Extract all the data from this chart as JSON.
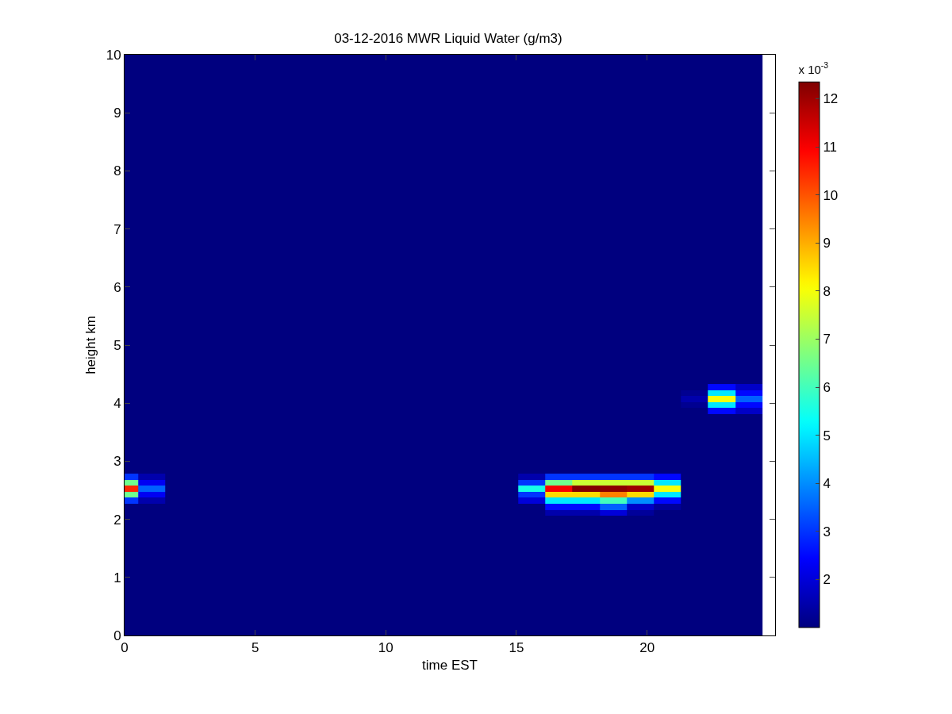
{
  "chart_data": {
    "type": "heatmap",
    "title": "03-12-2016 MWR Liquid Water (g/m3)",
    "xlabel": "time EST",
    "ylabel": "height km",
    "clabel": "x 10$^{-3}$",
    "x": [
      0,
      1.02,
      2.06,
      3.1,
      4.14,
      5.18,
      6.22,
      7.26,
      8.3,
      9.34,
      10.38,
      11.42,
      12.46,
      13.5,
      14.54,
      15.58,
      16.62,
      17.66,
      18.7,
      19.74,
      20.78,
      21.82,
      22.86,
      23.9
    ],
    "cells": [
      [
        1,
        1,
        1,
        1,
        1,
        1,
        1,
        1,
        1,
        1,
        1,
        1,
        1,
        1,
        1,
        1,
        1,
        1,
        1,
        1,
        1,
        1,
        1,
        1
      ],
      [
        1,
        1,
        1,
        1,
        1,
        1,
        1,
        1,
        1,
        1,
        1,
        1,
        1,
        1,
        1,
        1,
        1,
        1,
        1,
        1,
        1,
        1,
        1,
        1
      ],
      [
        1,
        1,
        1,
        1,
        1,
        1,
        1,
        1,
        1,
        1,
        1,
        1,
        1,
        1,
        1,
        1,
        1,
        1,
        1,
        1,
        1,
        1,
        1,
        1
      ],
      [
        1,
        1,
        1,
        1,
        1,
        1,
        1,
        1,
        1,
        1,
        1,
        1,
        1,
        1,
        1,
        1,
        1,
        1,
        1,
        1,
        1,
        1,
        1,
        1
      ],
      [
        1,
        1,
        1,
        1,
        1,
        1,
        1,
        1,
        1,
        1,
        1,
        1,
        1,
        1,
        1,
        1,
        1,
        1,
        1,
        1,
        1,
        1,
        1,
        1
      ],
      [
        1,
        1,
        1,
        1,
        1,
        1,
        1,
        1,
        1,
        1,
        1,
        1,
        1,
        1,
        1,
        1,
        1,
        1,
        1,
        1,
        1,
        1,
        1,
        1
      ],
      [
        1,
        1,
        1,
        1,
        1,
        1,
        1,
        1,
        1,
        1,
        1,
        1,
        1,
        1,
        1,
        1,
        1,
        1,
        1,
        1,
        1,
        1,
        1,
        1
      ],
      [
        1,
        1,
        1,
        1,
        1,
        1,
        1,
        1,
        1,
        1,
        1,
        1,
        1,
        1,
        1,
        1,
        1,
        1,
        1,
        1,
        1,
        1,
        1,
        1
      ],
      [
        1,
        1,
        1,
        1,
        1,
        1,
        1,
        1,
        1,
        1,
        1,
        1,
        1,
        1,
        1,
        1,
        1,
        1,
        1,
        1,
        1,
        1,
        1,
        1
      ],
      [
        1,
        1,
        1,
        1,
        1,
        1,
        1,
        1,
        1,
        1,
        1,
        1,
        1,
        1,
        1,
        1,
        1,
        1,
        1,
        1,
        1,
        1,
        1,
        1
      ],
      [
        1,
        1,
        1,
        1,
        1,
        1,
        1,
        1,
        1,
        1,
        1,
        1,
        1,
        1,
        1,
        1,
        1,
        1,
        1,
        1,
        1,
        1,
        1,
        1
      ],
      [
        1,
        1,
        1,
        1,
        1,
        1,
        1,
        1,
        1,
        1,
        1,
        1,
        1,
        1,
        1,
        1,
        1,
        1,
        1,
        1,
        1,
        1,
        1,
        1
      ],
      [
        1,
        1,
        1,
        1,
        1,
        1,
        1,
        1,
        1,
        1,
        1,
        1,
        1,
        1,
        1,
        1,
        1,
        1,
        1,
        1,
        1,
        1,
        1,
        1
      ],
      [
        1,
        1,
        1,
        1,
        1,
        1,
        1,
        1,
        1,
        1,
        1,
        1,
        1,
        1,
        1,
        1,
        1,
        1,
        1,
        1,
        1,
        1,
        1,
        1
      ],
      [
        1,
        1,
        1,
        1,
        1,
        1,
        1,
        1,
        1,
        1,
        1,
        1,
        1,
        1,
        1,
        1,
        1,
        1,
        1,
        1,
        1,
        1,
        1,
        1
      ],
      [
        1,
        1,
        1,
        1,
        1,
        1,
        1,
        1,
        1,
        1,
        1,
        1,
        1,
        1,
        1,
        1,
        1,
        1,
        1,
        1,
        1,
        1,
        1,
        1
      ],
      [
        1,
        1,
        1,
        1,
        1,
        1,
        1,
        1,
        1,
        1,
        1,
        1,
        1,
        1,
        1,
        1,
        1,
        1,
        1,
        1,
        1,
        1,
        1,
        1
      ],
      [
        1,
        1,
        1,
        1,
        1,
        1,
        1,
        1,
        1,
        1,
        1,
        1,
        1,
        1,
        1,
        1,
        1,
        1,
        1,
        1,
        1,
        1,
        1,
        1
      ],
      [
        1,
        1,
        1,
        1,
        1,
        1,
        1,
        1,
        1,
        1,
        1,
        1,
        1,
        1,
        1,
        1,
        1,
        1,
        1,
        1,
        1,
        1,
        1,
        1
      ],
      [
        1,
        1,
        1,
        1,
        1,
        1,
        1,
        1,
        1,
        1,
        1,
        1,
        1,
        1,
        1,
        1,
        1,
        1,
        1,
        1,
        1,
        1,
        1,
        1
      ],
      [
        1,
        1,
        1,
        1,
        1,
        1,
        1,
        1,
        1,
        1,
        1,
        1,
        1,
        1,
        1,
        1,
        1,
        1,
        1,
        1,
        1,
        1,
        1,
        1
      ],
      [
        1,
        1,
        1,
        1,
        1,
        1,
        1,
        1,
        1,
        1,
        1,
        1,
        1,
        1,
        1,
        1,
        1,
        1,
        1,
        1,
        1,
        1,
        1,
        1
      ],
      [
        1,
        1,
        1,
        1,
        1,
        1,
        1,
        1,
        1,
        1,
        1,
        1,
        1,
        1,
        1,
        1,
        1,
        1,
        1,
        1,
        1,
        1,
        1,
        1
      ],
      [
        1,
        1,
        1,
        1,
        1,
        1,
        1,
        1,
        1,
        1,
        1,
        1,
        1,
        1,
        1,
        1,
        1,
        1,
        1,
        1,
        1,
        1,
        1,
        1
      ],
      [
        1,
        1,
        1,
        1,
        1,
        1,
        1,
        1,
        1,
        1,
        1,
        1,
        1,
        1,
        1,
        1,
        1,
        1,
        1,
        1,
        1,
        1,
        1,
        1
      ],
      [
        1,
        1,
        1,
        1,
        1,
        1,
        1,
        1,
        1,
        1,
        1,
        1,
        1,
        1,
        1,
        1,
        1,
        1,
        1,
        1,
        1,
        1,
        1,
        1
      ],
      [
        1,
        1,
        1,
        1,
        1,
        1,
        1,
        1,
        1,
        1,
        1,
        1,
        1,
        1,
        1,
        1,
        1,
        1,
        1,
        1,
        1,
        1,
        1,
        1
      ],
      [
        1,
        1,
        1,
        1,
        1,
        1,
        1,
        1,
        1,
        1,
        1,
        1,
        1,
        1,
        1,
        1,
        1,
        1,
        1,
        1,
        1,
        1,
        1,
        1
      ],
      [
        1,
        1,
        1,
        1,
        1,
        1,
        1,
        1,
        1,
        1,
        1,
        1,
        1,
        1,
        1,
        1,
        1,
        1,
        1,
        1,
        1,
        1,
        1,
        1
      ],
      [
        1,
        1,
        1,
        1,
        1,
        1,
        1,
        1,
        1,
        1,
        1,
        1,
        1,
        1,
        1,
        1,
        1,
        1,
        1,
        1,
        1,
        1,
        1,
        1
      ],
      [
        1,
        1,
        1,
        1,
        1,
        1,
        1,
        1,
        1,
        1,
        1,
        1,
        1,
        1,
        1,
        1,
        1,
        1,
        1,
        1,
        1,
        1,
        1,
        1
      ],
      [
        1,
        1,
        1,
        1,
        1,
        1,
        1,
        1,
        1,
        1,
        1,
        1,
        1,
        1,
        1,
        1,
        1,
        1,
        1,
        1,
        1,
        1,
        1,
        1
      ],
      [
        1,
        1,
        1,
        1,
        1,
        1,
        1,
        1,
        1,
        1,
        1,
        1,
        1,
        1,
        1,
        1,
        1,
        1,
        1,
        1,
        1,
        1,
        1,
        1
      ],
      [
        1,
        1,
        1,
        1,
        1,
        1,
        1,
        1,
        1,
        1,
        1,
        1,
        1,
        1,
        1,
        1,
        1,
        1,
        1,
        1,
        1,
        1,
        1,
        1
      ],
      [
        1,
        1,
        1,
        1,
        1,
        1,
        1,
        1,
        1,
        1,
        1,
        1,
        1,
        1,
        1,
        1,
        1,
        1,
        1,
        1,
        1,
        1,
        1,
        1
      ],
      [
        1,
        1,
        1,
        1,
        1,
        1,
        1,
        1,
        1,
        1,
        1,
        1,
        1,
        1,
        1,
        1,
        1,
        1,
        1,
        1,
        1,
        1,
        1,
        1
      ],
      [
        1,
        1,
        1,
        1,
        1,
        1,
        1,
        1,
        1,
        1,
        1,
        1,
        1,
        1,
        1,
        1,
        1,
        1,
        1,
        1,
        1,
        1,
        1,
        1
      ],
      [
        1,
        1,
        1,
        1,
        1,
        1,
        1,
        1,
        1,
        1,
        1,
        1,
        1,
        1,
        1,
        1,
        1,
        1,
        1,
        1,
        1,
        1,
        1,
        1
      ],
      [
        1,
        1,
        1,
        1,
        1,
        1,
        1,
        1,
        1,
        1,
        1,
        1,
        1,
        1,
        1,
        1,
        1,
        1,
        1,
        1,
        1,
        1,
        1,
        1
      ],
      [
        1,
        1,
        1,
        1,
        1,
        1,
        1,
        1,
        1,
        1,
        1,
        1,
        1,
        1,
        1,
        1,
        1,
        1,
        1,
        1,
        1,
        1,
        1,
        1
      ],
      [
        1,
        1,
        1,
        1,
        1,
        1,
        1,
        1,
        1,
        1,
        1,
        1,
        1,
        1,
        1,
        1,
        1,
        1,
        1,
        1,
        1,
        1,
        1,
        1
      ],
      [
        1,
        1,
        1,
        1,
        1,
        1,
        1,
        1,
        1,
        1,
        1,
        1,
        1,
        1,
        1,
        1,
        1,
        1,
        1,
        1,
        1,
        1,
        1,
        1
      ],
      [
        1,
        1,
        1,
        1,
        1,
        1,
        1,
        1,
        1,
        1,
        1,
        1,
        1,
        1,
        1,
        1,
        1,
        1,
        1,
        1,
        1,
        1,
        1,
        1
      ],
      [
        1,
        1,
        1,
        1,
        1,
        1,
        1,
        1,
        1,
        1,
        1,
        1,
        1,
        1,
        1,
        1,
        1,
        1,
        1,
        1,
        1,
        1,
        1,
        1
      ],
      [
        1,
        1,
        1,
        1,
        1,
        1,
        1,
        1,
        1,
        1,
        1,
        1,
        1,
        1,
        1,
        1,
        1,
        1,
        1,
        1,
        1,
        1,
        1,
        1
      ],
      [
        1,
        1,
        1,
        1,
        1,
        1,
        1,
        1,
        1,
        1,
        1,
        1,
        1,
        1,
        1,
        1,
        1,
        1,
        1,
        1,
        1,
        1,
        1,
        1
      ],
      [
        1,
        1,
        1,
        1,
        1,
        1,
        1,
        1,
        1,
        1,
        1,
        1,
        1,
        1,
        1,
        1,
        1,
        1,
        1,
        1,
        1,
        1,
        1,
        1
      ],
      [
        1,
        1,
        1,
        1,
        1,
        1,
        1,
        1,
        1,
        1,
        1,
        1,
        1,
        1,
        1,
        1,
        1,
        1,
        1,
        1,
        1,
        1,
        1,
        1
      ],
      [
        1,
        1,
        1,
        1,
        1,
        1,
        1,
        1,
        1,
        1,
        1,
        1,
        1,
        1,
        1,
        1,
        1,
        1,
        1,
        1,
        1,
        1,
        1,
        1
      ],
      [
        1,
        1,
        1,
        1,
        1,
        1,
        1,
        1,
        1,
        1,
        1,
        1,
        1,
        1,
        1,
        1,
        1,
        1,
        1,
        1,
        1,
        1,
        1,
        1
      ],
      [
        1,
        1,
        1,
        1,
        1,
        1,
        1,
        1,
        1,
        1,
        1,
        1,
        1,
        1,
        1,
        1,
        1,
        1,
        1,
        1,
        1,
        1,
        1,
        1
      ],
      [
        1,
        1,
        1,
        1,
        1,
        1,
        1,
        1,
        1,
        1,
        1,
        1,
        1,
        1,
        1,
        1,
        1,
        1,
        1,
        1,
        1,
        1,
        1,
        1
      ],
      [
        1,
        1,
        1,
        1,
        1,
        1,
        1,
        1,
        1,
        1,
        1,
        1,
        1,
        1,
        1,
        1,
        1,
        1,
        1,
        1,
        1,
        1,
        1,
        1
      ],
      [
        1,
        1,
        1,
        1,
        1,
        1,
        1,
        1,
        1,
        1,
        1,
        1,
        1,
        1,
        1,
        1,
        1,
        1,
        1,
        1,
        1,
        1,
        1,
        1
      ],
      [
        1,
        1,
        1,
        1,
        1,
        1,
        1,
        1,
        1,
        1,
        1,
        1,
        1,
        1,
        1,
        1,
        1,
        1,
        1,
        1,
        1,
        1,
        1,
        1
      ],
      [
        1,
        1,
        1,
        1,
        1,
        1,
        1,
        1,
        1,
        1,
        1,
        1,
        1,
        1,
        1,
        1,
        1,
        1,
        1,
        1,
        1,
        1,
        2.5,
        1.8
      ],
      [
        1,
        1,
        1,
        1,
        1,
        1,
        1,
        1,
        1,
        1,
        1,
        1,
        1,
        1,
        1,
        1,
        1,
        1,
        1,
        1,
        1,
        1.2,
        5,
        2.5
      ],
      [
        1,
        1,
        1,
        1,
        1,
        1,
        1,
        1,
        1,
        1,
        1,
        1,
        1,
        1,
        1,
        1,
        1,
        1,
        1,
        1,
        1,
        1.5,
        8,
        3.5
      ],
      [
        1,
        1,
        1,
        1,
        1,
        1,
        1,
        1,
        1,
        1,
        1,
        1,
        1,
        1,
        1,
        1,
        1,
        1,
        1,
        1,
        1,
        1.2,
        5,
        2.5
      ],
      [
        1,
        1,
        1,
        1,
        1,
        1,
        1,
        1,
        1,
        1,
        1,
        1,
        1,
        1,
        1,
        1,
        1,
        1,
        1,
        1,
        1,
        1,
        2.5,
        1.8
      ],
      [
        1,
        1,
        1,
        1,
        1,
        1,
        1,
        1,
        1,
        1,
        1,
        1,
        1,
        1,
        1,
        1,
        1,
        1,
        1,
        1,
        1,
        1,
        1,
        1
      ],
      [
        1,
        1,
        1,
        1,
        1,
        1,
        1,
        1,
        1,
        1,
        1,
        1,
        1,
        1,
        1,
        1,
        1,
        1,
        1,
        1,
        1,
        1,
        1,
        1
      ],
      [
        1,
        1,
        1,
        1,
        1,
        1,
        1,
        1,
        1,
        1,
        1,
        1,
        1,
        1,
        1,
        1,
        1,
        1,
        1,
        1,
        1,
        1,
        1,
        1
      ],
      [
        1,
        1,
        1,
        1,
        1,
        1,
        1,
        1,
        1,
        1,
        1,
        1,
        1,
        1,
        1,
        1,
        1,
        1,
        1,
        1,
        1,
        1,
        1,
        1
      ],
      [
        1,
        1,
        1,
        1,
        1,
        1,
        1,
        1,
        1,
        1,
        1,
        1,
        1,
        1,
        1,
        1,
        1,
        1,
        1,
        1,
        1,
        1,
        1,
        1
      ],
      [
        1,
        1,
        1,
        1,
        1,
        1,
        1,
        1,
        1,
        1,
        1,
        1,
        1,
        1,
        1,
        1,
        1,
        1,
        1,
        1,
        1,
        1,
        1,
        1
      ],
      [
        1,
        1,
        1,
        1,
        1,
        1,
        1,
        1,
        1,
        1,
        1,
        1,
        1,
        1,
        1,
        1,
        1,
        1,
        1,
        1,
        1,
        1,
        1,
        1
      ],
      [
        1,
        1,
        1,
        1,
        1,
        1,
        1,
        1,
        1,
        1,
        1,
        1,
        1,
        1,
        1,
        1,
        1,
        1,
        1,
        1,
        1,
        1,
        1,
        1
      ],
      [
        1,
        1,
        1,
        1,
        1,
        1,
        1,
        1,
        1,
        1,
        1,
        1,
        1,
        1,
        1,
        1,
        1,
        1,
        1,
        1,
        1,
        1,
        1,
        1
      ],
      [
        1,
        1,
        1,
        1,
        1,
        1,
        1,
        1,
        1,
        1,
        1,
        1,
        1,
        1,
        1,
        1,
        1,
        1,
        1,
        1,
        1,
        1,
        1,
        1
      ],
      [
        3,
        1.5,
        1,
        1,
        1,
        1,
        1,
        1,
        1,
        1,
        1,
        1,
        1,
        1,
        1,
        1.5,
        3,
        3,
        3,
        3,
        2.5,
        1,
        1,
        1
      ],
      [
        6.5,
        2.3,
        1,
        1,
        1,
        1,
        1,
        1,
        1,
        1,
        1,
        1,
        1,
        1,
        1,
        3,
        6.5,
        7.5,
        7.5,
        7.5,
        5,
        1,
        1,
        1
      ],
      [
        10.5,
        3.5,
        1,
        1,
        1,
        1,
        1,
        1,
        1,
        1,
        1,
        1,
        1,
        1,
        1,
        5.5,
        11,
        12.3,
        12.2,
        12,
        8,
        1,
        1,
        1
      ],
      [
        6.5,
        2.3,
        1,
        1,
        1,
        1,
        1,
        1,
        1,
        1,
        1,
        1,
        1,
        1,
        1,
        3,
        8.5,
        8.5,
        9.5,
        8.5,
        5,
        1,
        1,
        1
      ],
      [
        3,
        1.5,
        1,
        1,
        1,
        1,
        1,
        1,
        1,
        1,
        1,
        1,
        1,
        1,
        1,
        2,
        5,
        5,
        6,
        4,
        2.5,
        1,
        1,
        1
      ],
      [
        1,
        1,
        1,
        1,
        1,
        1,
        1,
        1,
        1,
        1,
        1,
        1,
        1,
        1,
        1,
        1,
        2.5,
        2.5,
        3.5,
        1.8,
        1.3,
        1,
        1,
        1
      ],
      [
        1,
        1,
        1,
        1,
        1,
        1,
        1,
        1,
        1,
        1,
        1,
        1,
        1,
        1,
        1,
        1,
        1.5,
        1.5,
        2,
        1.3,
        1,
        1,
        1,
        1
      ],
      [
        1,
        1,
        1,
        1,
        1,
        1,
        1,
        1,
        1,
        1,
        1,
        1,
        1,
        1,
        1,
        1,
        1,
        1,
        1,
        1,
        1,
        1,
        1,
        1
      ],
      [
        1,
        1,
        1,
        1,
        1,
        1,
        1,
        1,
        1,
        1,
        1,
        1,
        1,
        1,
        1,
        1,
        1,
        1,
        1,
        1,
        1,
        1,
        1,
        1
      ],
      [
        1,
        1,
        1,
        1,
        1,
        1,
        1,
        1,
        1,
        1,
        1,
        1,
        1,
        1,
        1,
        1,
        1,
        1,
        1,
        1,
        1,
        1,
        1,
        1
      ],
      [
        1,
        1,
        1,
        1,
        1,
        1,
        1,
        1,
        1,
        1,
        1,
        1,
        1,
        1,
        1,
        1,
        1,
        1,
        1,
        1,
        1,
        1,
        1,
        1
      ],
      [
        1,
        1,
        1,
        1,
        1,
        1,
        1,
        1,
        1,
        1,
        1,
        1,
        1,
        1,
        1,
        1,
        1,
        1,
        1,
        1,
        1,
        1,
        1,
        1
      ],
      [
        1,
        1,
        1,
        1,
        1,
        1,
        1,
        1,
        1,
        1,
        1,
        1,
        1,
        1,
        1,
        1,
        1,
        1,
        1,
        1,
        1,
        1,
        1,
        1
      ],
      [
        1,
        1,
        1,
        1,
        1,
        1,
        1,
        1,
        1,
        1,
        1,
        1,
        1,
        1,
        1,
        1,
        1,
        1,
        1,
        1,
        1,
        1,
        1,
        1
      ],
      [
        1,
        1,
        1,
        1,
        1,
        1,
        1,
        1,
        1,
        1,
        1,
        1,
        1,
        1,
        1,
        1,
        1,
        1,
        1,
        1,
        1,
        1,
        1,
        1
      ],
      [
        1,
        1,
        1,
        1,
        1,
        1,
        1,
        1,
        1,
        1,
        1,
        1,
        1,
        1,
        1,
        1,
        1,
        1,
        1,
        1,
        1,
        1,
        1,
        1
      ],
      [
        1,
        1,
        1,
        1,
        1,
        1,
        1,
        1,
        1,
        1,
        1,
        1,
        1,
        1,
        1,
        1,
        1,
        1,
        1,
        1,
        1,
        1,
        1,
        1
      ],
      [
        1,
        1,
        1,
        1,
        1,
        1,
        1,
        1,
        1,
        1,
        1,
        1,
        1,
        1,
        1,
        1,
        1,
        1,
        1,
        1,
        1,
        1,
        1,
        1
      ],
      [
        1,
        1,
        1,
        1,
        1,
        1,
        1,
        1,
        1,
        1,
        1,
        1,
        1,
        1,
        1,
        1,
        1,
        1,
        1,
        1,
        1,
        1,
        1,
        1
      ],
      [
        1,
        1,
        1,
        1,
        1,
        1,
        1,
        1,
        1,
        1,
        1,
        1,
        1,
        1,
        1,
        1,
        1,
        1,
        1,
        1,
        1,
        1,
        1,
        1
      ],
      [
        1,
        1,
        1,
        1,
        1,
        1,
        1,
        1,
        1,
        1,
        1,
        1,
        1,
        1,
        1,
        1,
        1,
        1,
        1,
        1,
        1,
        1,
        1,
        1
      ],
      [
        1,
        1,
        1,
        1,
        1,
        1,
        1,
        1,
        1,
        1,
        1,
        1,
        1,
        1,
        1,
        1,
        1,
        1,
        1,
        1,
        1,
        1,
        1,
        1
      ],
      [
        1,
        1,
        1,
        1,
        1,
        1,
        1,
        1,
        1,
        1,
        1,
        1,
        1,
        1,
        1,
        1,
        1,
        1,
        1,
        1,
        1,
        1,
        1,
        1
      ],
      [
        1,
        1,
        1,
        1,
        1,
        1,
        1,
        1,
        1,
        1,
        1,
        1,
        1,
        1,
        1,
        1,
        1,
        1,
        1,
        1,
        1,
        1,
        1,
        1
      ],
      [
        1,
        1,
        1,
        1,
        1,
        1,
        1,
        1,
        1,
        1,
        1,
        1,
        1,
        1,
        1,
        1,
        1,
        1,
        1,
        1,
        1,
        1,
        1,
        1
      ],
      [
        1,
        1,
        1,
        1,
        1,
        1,
        1,
        1,
        1,
        1,
        1,
        1,
        1,
        1,
        1,
        1,
        1,
        1,
        1,
        1,
        1,
        1,
        1,
        1
      ],
      [
        1,
        1,
        1,
        1,
        1,
        1,
        1,
        1,
        1,
        1,
        1,
        1,
        1,
        1,
        1,
        1,
        1,
        1,
        1,
        1,
        1,
        1,
        1,
        1
      ]
    ],
    "clim": [
      1,
      12.35
    ],
    "cticks": [
      2,
      3,
      4,
      5,
      6,
      7,
      8,
      9,
      10,
      11,
      12
    ],
    "xlim": [
      0,
      24.9
    ],
    "xticks": [
      0,
      5,
      10,
      15,
      20
    ],
    "ylim": [
      0,
      10
    ],
    "yticks": [
      0,
      1,
      2,
      3,
      4,
      5,
      6,
      7,
      8,
      9,
      10
    ]
  }
}
